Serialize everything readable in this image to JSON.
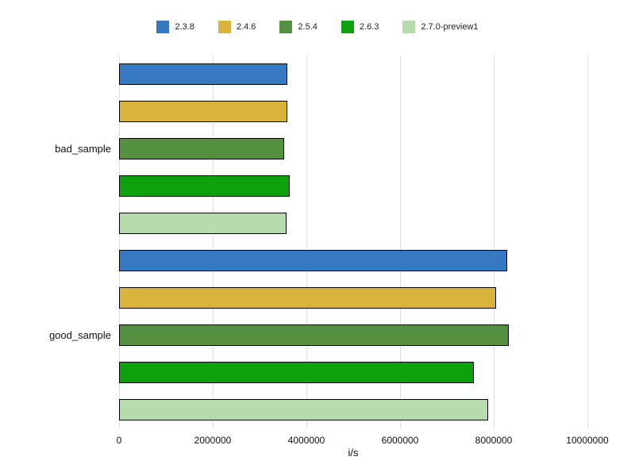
{
  "chart_data": {
    "type": "bar",
    "orientation": "horizontal",
    "title": "",
    "xlabel": "i/s",
    "ylabel": "",
    "xlim": [
      0,
      10000000
    ],
    "xticks": [
      0,
      2000000,
      4000000,
      6000000,
      8000000,
      10000000
    ],
    "grid": true,
    "legend_position": "top",
    "categories": [
      "bad_sample",
      "good_sample"
    ],
    "series": [
      {
        "name": "2.3.8",
        "color": "#3778c2",
        "values": [
          3600000,
          8280000
        ]
      },
      {
        "name": "2.4.6",
        "color": "#d9b43c",
        "values": [
          3600000,
          8050000
        ]
      },
      {
        "name": "2.5.4",
        "color": "#54903f",
        "values": [
          3530000,
          8330000
        ]
      },
      {
        "name": "2.6.3",
        "color": "#0da10d",
        "values": [
          3650000,
          7570000
        ]
      },
      {
        "name": "2.7.0-preview1",
        "color": "#b6dcae",
        "values": [
          3570000,
          7880000
        ]
      }
    ],
    "bar_border_color": "#000000",
    "gridline_color": "#dddddd",
    "background": "#ffffff"
  }
}
